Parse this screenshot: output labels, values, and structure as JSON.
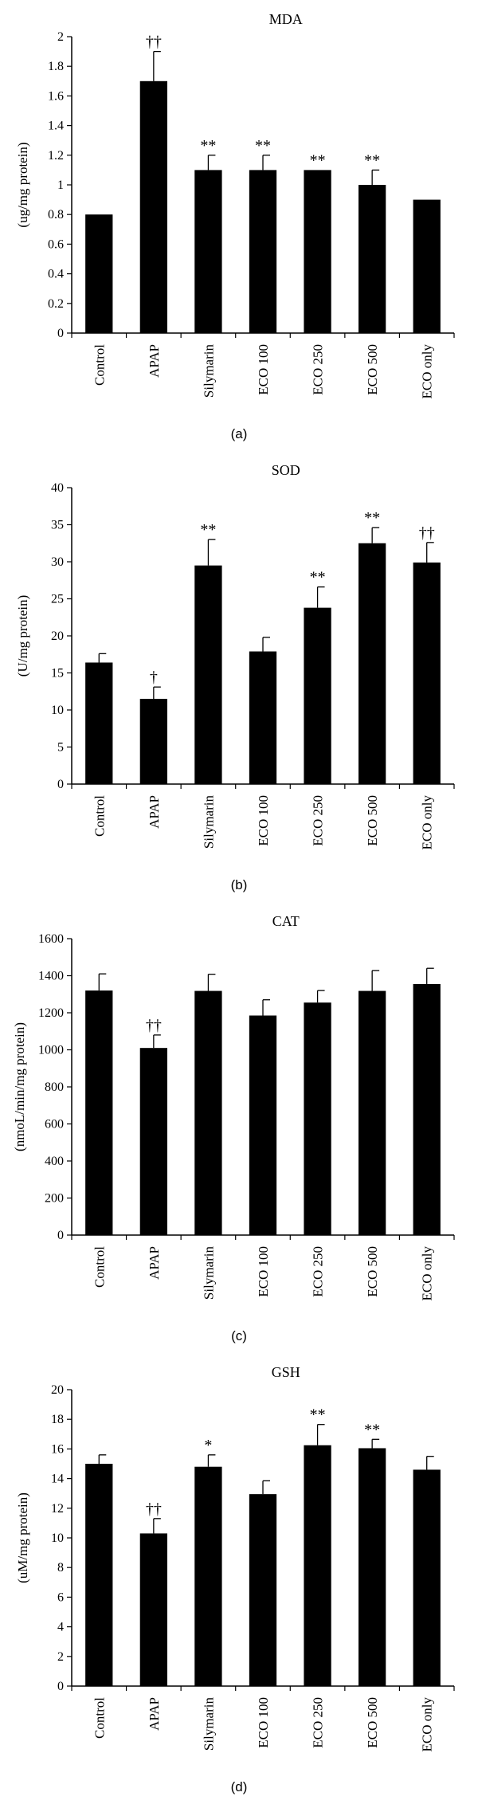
{
  "chart_data": [
    {
      "type": "bar",
      "panel_label": "(a)",
      "title": "MDA",
      "ylabel": "(ug/mg protein)",
      "xlabel": "",
      "ylim": [
        0,
        2
      ],
      "yticks": [
        "0",
        "0.2",
        "0.4",
        "0.6",
        "0.8",
        "1",
        "1.2",
        "1.4",
        "1.6",
        "1.8",
        "2"
      ],
      "categories": [
        "Control",
        "APAP",
        "Silymarin",
        "ECO 100",
        "ECO 250",
        "ECO 500",
        "ECO only"
      ],
      "values": [
        0.8,
        1.7,
        1.1,
        1.1,
        1.1,
        1.0,
        0.9
      ],
      "errors": [
        0.0,
        0.2,
        0.1,
        0.1,
        0.0,
        0.1,
        0.0
      ],
      "annotations": [
        "",
        "††",
        "**",
        "**",
        "**",
        "**",
        ""
      ],
      "grid": false,
      "colors": {
        "bar": "#000000"
      }
    },
    {
      "type": "bar",
      "panel_label": "(b)",
      "title": "SOD",
      "ylabel": "(U/mg protein)",
      "xlabel": "",
      "ylim": [
        0,
        40
      ],
      "yticks": [
        "0",
        "5",
        "10",
        "15",
        "20",
        "25",
        "30",
        "35",
        "40"
      ],
      "categories": [
        "Control",
        "APAP",
        "Silymarin",
        "ECO 100",
        "ECO 250",
        "ECO 500",
        "ECO only"
      ],
      "values": [
        16.4,
        11.5,
        29.5,
        17.9,
        23.8,
        32.5,
        29.9
      ],
      "errors": [
        1.2,
        1.6,
        3.5,
        1.9,
        2.8,
        2.1,
        2.7
      ],
      "annotations": [
        "",
        "†",
        "**",
        "",
        "**",
        "**",
        "††"
      ],
      "grid": false,
      "colors": {
        "bar": "#000000"
      }
    },
    {
      "type": "bar",
      "panel_label": "(c)",
      "title": "CAT",
      "ylabel": "(nmoL/min/mg protein)",
      "xlabel": "",
      "ylim": [
        0,
        1600
      ],
      "yticks": [
        "0",
        "200",
        "400",
        "600",
        "800",
        "1000",
        "1200",
        "1400",
        "1600"
      ],
      "categories": [
        "Control",
        "APAP",
        "Silymarin",
        "ECO 100",
        "ECO 250",
        "ECO 500",
        "ECO only"
      ],
      "values": [
        1320,
        1010,
        1318,
        1185,
        1255,
        1318,
        1355
      ],
      "errors": [
        90,
        70,
        90,
        85,
        65,
        110,
        85
      ],
      "annotations": [
        "",
        "††",
        "",
        "",
        "",
        "",
        ""
      ],
      "grid": false,
      "colors": {
        "bar": "#000000"
      }
    },
    {
      "type": "bar",
      "panel_label": "(d)",
      "title": "GSH",
      "ylabel": "(uM/mg protein)",
      "xlabel": "",
      "ylim": [
        0,
        20
      ],
      "yticks": [
        "0",
        "2",
        "4",
        "6",
        "8",
        "10",
        "12",
        "14",
        "16",
        "18",
        "20"
      ],
      "categories": [
        "Control",
        "APAP",
        "Silymarin",
        "ECO 100",
        "ECO 250",
        "ECO 500",
        "ECO only"
      ],
      "values": [
        15.0,
        10.3,
        14.8,
        12.95,
        16.25,
        16.05,
        14.6
      ],
      "errors": [
        0.6,
        1.0,
        0.8,
        0.9,
        1.4,
        0.6,
        0.9
      ],
      "annotations": [
        "",
        "††",
        "*",
        "",
        "**",
        "**",
        ""
      ],
      "grid": false,
      "colors": {
        "bar": "#000000"
      }
    }
  ]
}
